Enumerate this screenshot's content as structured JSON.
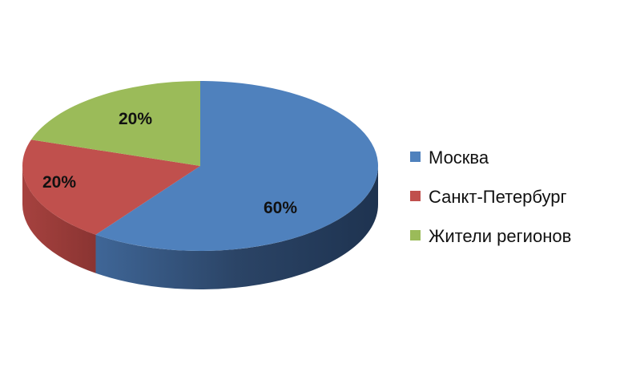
{
  "chart_data": {
    "type": "pie",
    "style": "3d",
    "categories": [
      "Москва",
      "Санкт-Петербург",
      "Жители регионов"
    ],
    "values": [
      60,
      20,
      20
    ],
    "data_labels": [
      "60%",
      "20%",
      "20%"
    ],
    "colors": [
      "#4F81BD",
      "#C0504D",
      "#9BBB59"
    ],
    "side_colors": [
      "#2E4A6E",
      "#8C3230",
      "#6F8A3C"
    ],
    "legend_position": "right",
    "title": ""
  }
}
